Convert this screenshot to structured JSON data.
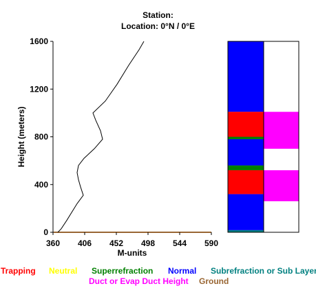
{
  "header": {
    "station_line": "Station:",
    "location_line": "Location:   0°N /   0°E"
  },
  "chart_data": {
    "type": "line",
    "xlabel": "M-units",
    "ylabel": "Height (meters)",
    "xlim": [
      360,
      590
    ],
    "ylim": [
      0,
      1600
    ],
    "x_ticks": [
      "360",
      "406",
      "452",
      "498",
      "544",
      "590"
    ],
    "y_ticks": [
      "0",
      "400",
      "800",
      "1200",
      "1600"
    ],
    "grid": false,
    "series": [
      {
        "color": "#000000",
        "points": [
          [
            367,
            0
          ],
          [
            372,
            30
          ],
          [
            380,
            100
          ],
          [
            395,
            240
          ],
          [
            404,
            310
          ],
          [
            400,
            380
          ],
          [
            397,
            440
          ],
          [
            395,
            500
          ],
          [
            397,
            560
          ],
          [
            405,
            620
          ],
          [
            420,
            700
          ],
          [
            432,
            780
          ],
          [
            429,
            850
          ],
          [
            422,
            940
          ],
          [
            418,
            1000
          ],
          [
            436,
            1100
          ],
          [
            453,
            1240
          ],
          [
            470,
            1400
          ],
          [
            485,
            1530
          ],
          [
            492,
            1600
          ]
        ]
      }
    ],
    "ground_color": "#996633",
    "duct_bars": {
      "left_column": [
        {
          "from": 0,
          "to": 18,
          "color": "#008080"
        },
        {
          "from": 18,
          "to": 320,
          "color": "#0000ff"
        },
        {
          "from": 320,
          "to": 520,
          "color": "#ff0000"
        },
        {
          "from": 520,
          "to": 560,
          "color": "#008000"
        },
        {
          "from": 560,
          "to": 780,
          "color": "#0000ff"
        },
        {
          "from": 780,
          "to": 800,
          "color": "#008000"
        },
        {
          "from": 800,
          "to": 1010,
          "color": "#ff0000"
        },
        {
          "from": 1010,
          "to": 1600,
          "color": "#0000ff"
        }
      ],
      "right_column": [
        {
          "from": 0,
          "to": 260,
          "color": "#ffffff"
        },
        {
          "from": 260,
          "to": 520,
          "color": "#ff00ff"
        },
        {
          "from": 520,
          "to": 700,
          "color": "#ffffff"
        },
        {
          "from": 700,
          "to": 1010,
          "color": "#ff00ff"
        },
        {
          "from": 1010,
          "to": 1600,
          "color": "#ffffff"
        }
      ]
    }
  },
  "legend": [
    {
      "label": "Trapping",
      "color": "#ff0000"
    },
    {
      "label": "Neutral",
      "color": "#ffff00"
    },
    {
      "label": "Superrefraction",
      "color": "#008000"
    },
    {
      "label": "Normal",
      "color": "#0000ff"
    },
    {
      "label": "Subrefraction or Sub Layer",
      "color": "#008080"
    },
    {
      "label": "Duct or Evap Duct Height",
      "color": "#ff00ff"
    },
    {
      "label": "Ground",
      "color": "#996633"
    }
  ]
}
